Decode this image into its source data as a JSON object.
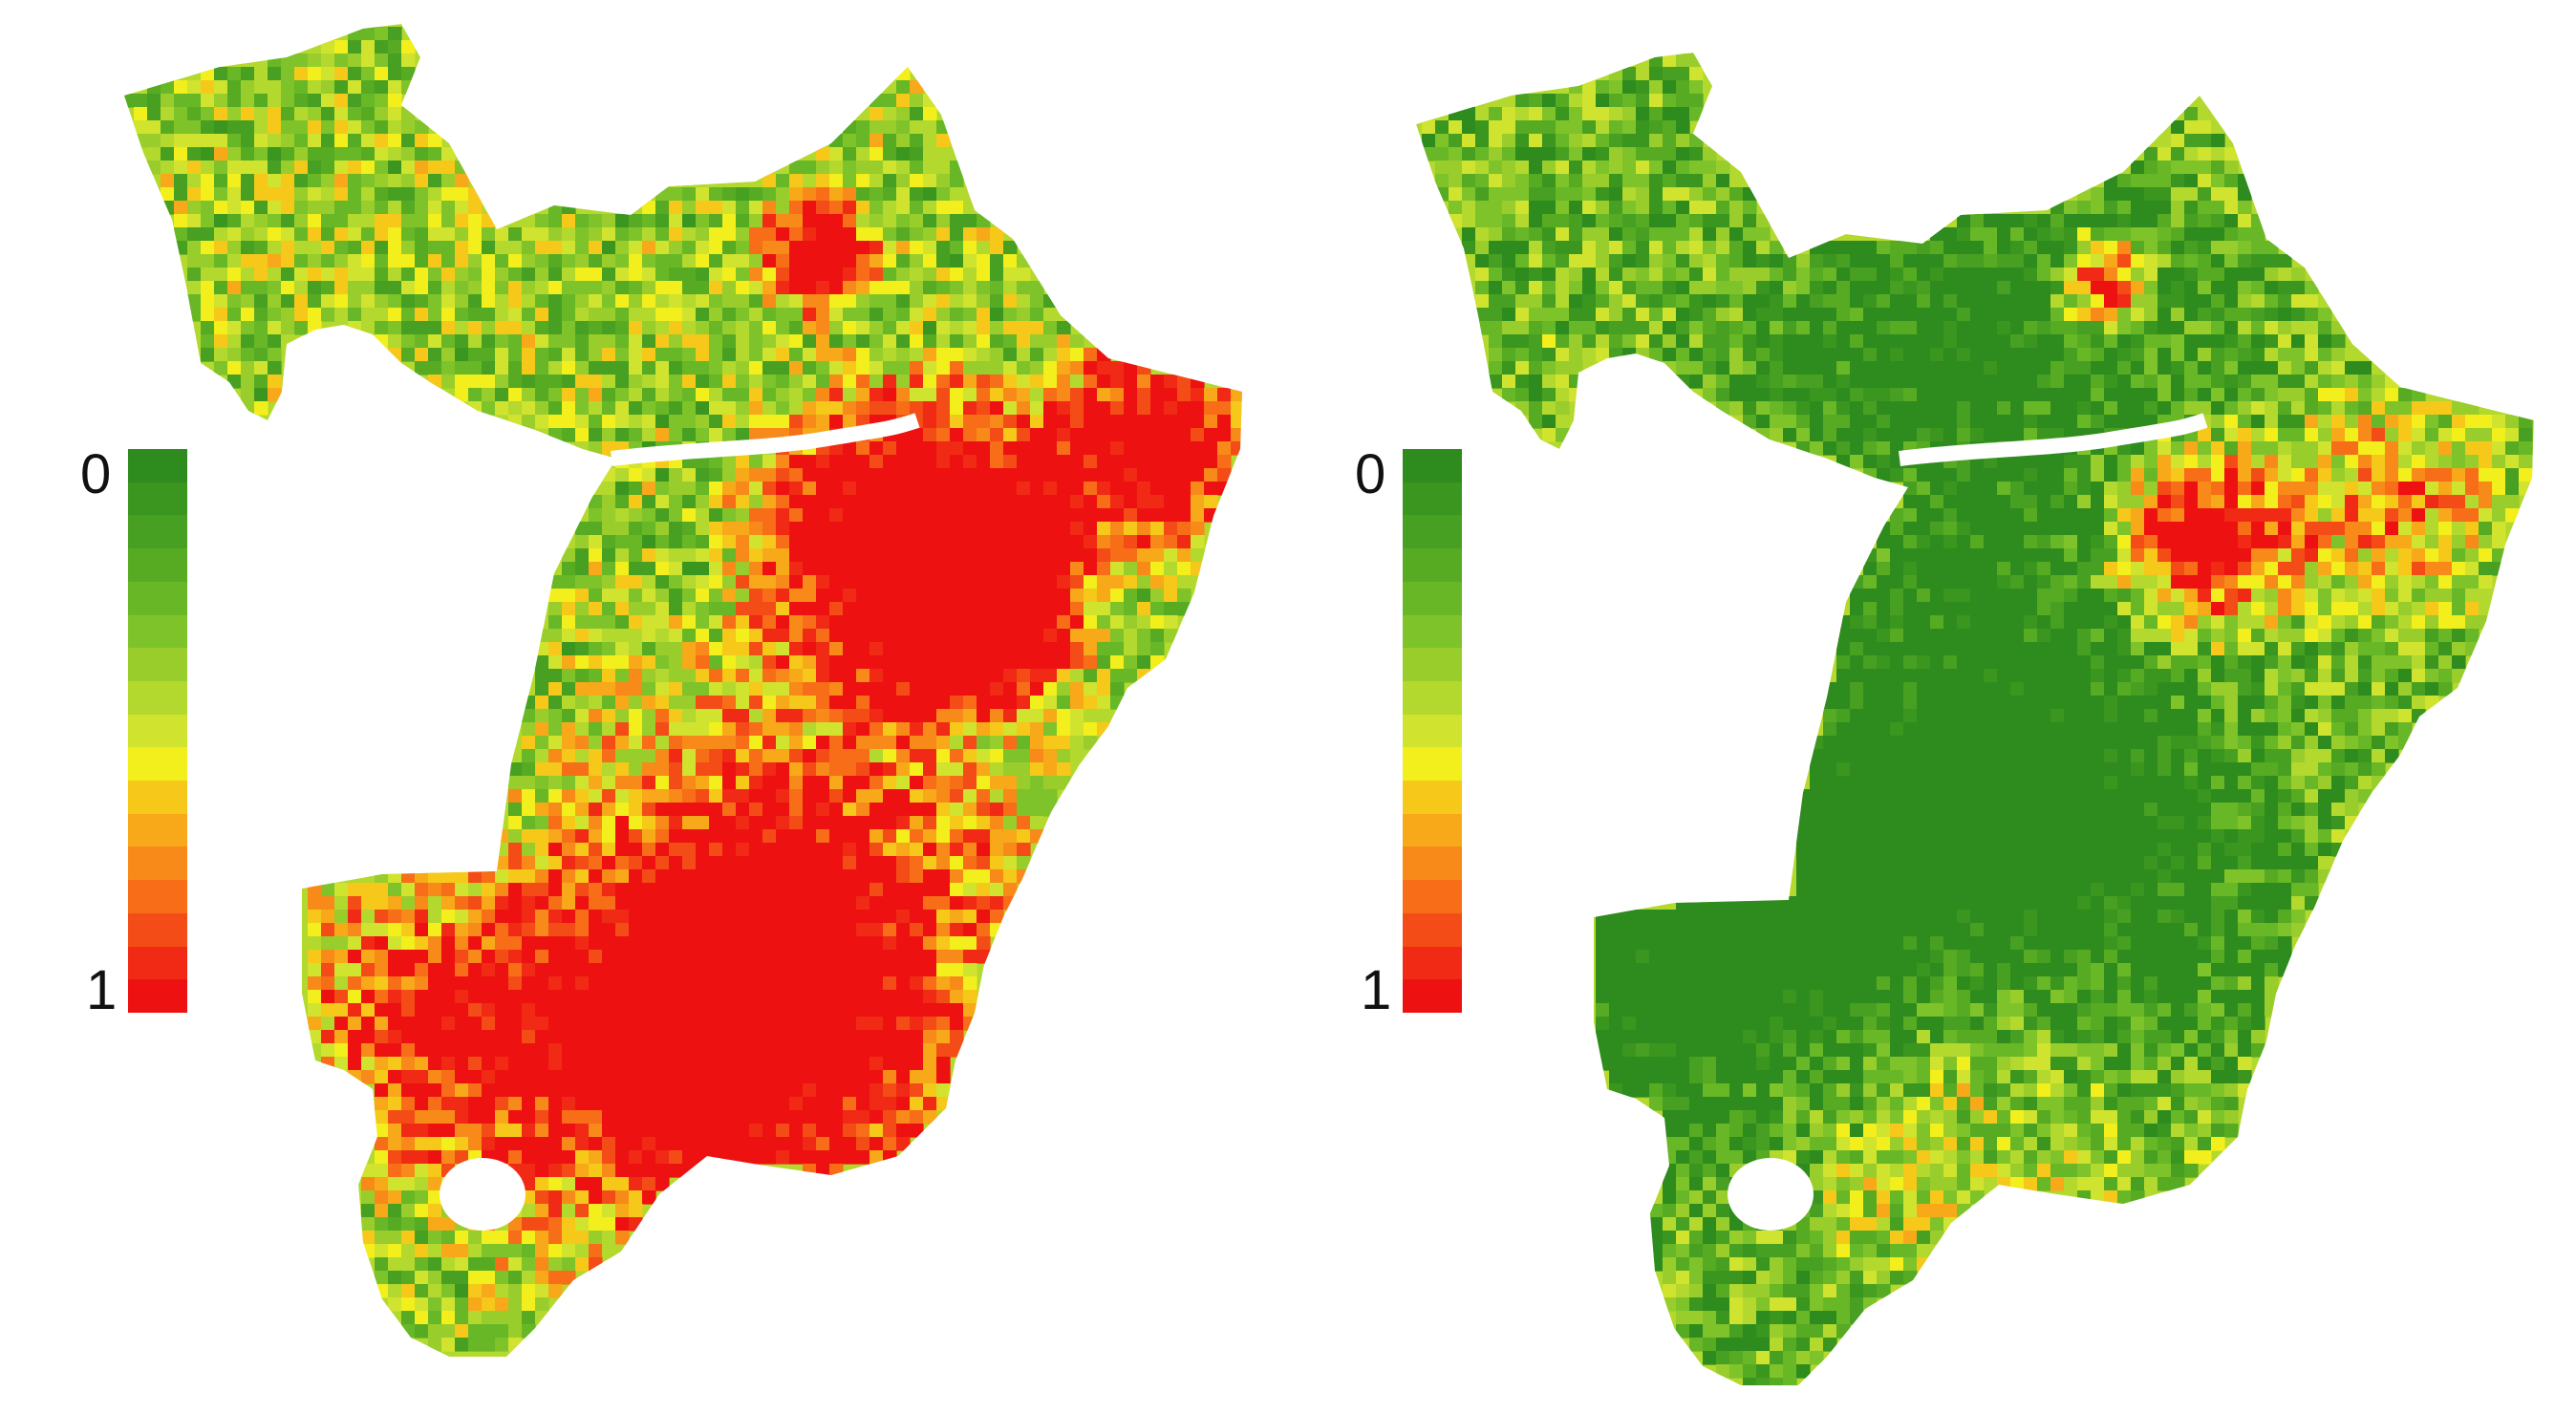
{
  "figure": {
    "panels": [
      {
        "id": "left",
        "colorbar": {
          "min_label": "0",
          "max_label": "1"
        },
        "palette": "left"
      },
      {
        "id": "right",
        "colorbar": {
          "min_label": "0",
          "max_label": "1"
        },
        "palette": "right"
      }
    ]
  },
  "colors": {
    "scale": [
      "#2e8b1e",
      "#3a961f",
      "#47a021",
      "#56ab23",
      "#68b726",
      "#7fc32a",
      "#99cd2c",
      "#b3d82e",
      "#d0e32f",
      "#f2ef1c",
      "#f5c81a",
      "#f7a91a",
      "#f88a1a",
      "#f76d18",
      "#f44c16",
      "#f02a14",
      "#ee1111"
    ],
    "background": "#ffffff",
    "river": "#ffffff"
  }
}
